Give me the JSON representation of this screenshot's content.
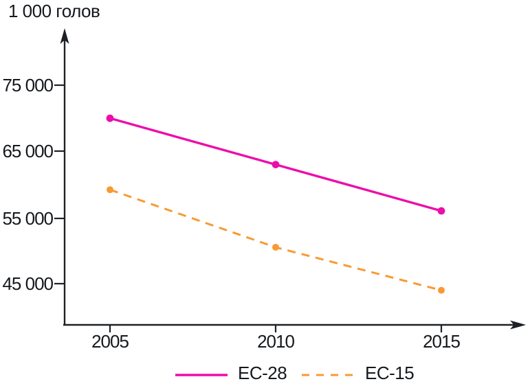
{
  "chart_data": {
    "type": "line",
    "title": "",
    "ylabel": "1 000 голов",
    "xlabel": "",
    "x": [
      2005,
      2010,
      2015
    ],
    "x_tick_labels": [
      "2005",
      "2010",
      "2015"
    ],
    "y_tick_labels": [
      "75 000",
      "65 000",
      "55 000",
      "45 000"
    ],
    "y_tick_values": [
      75000,
      65000,
      55000,
      45000
    ],
    "ylim_drawn": [
      38500,
      83000
    ],
    "grid": false,
    "legend_position": "bottom",
    "series": [
      {
        "name": "ЕС-28",
        "values": [
          70000,
          63000,
          56000
        ],
        "color": "#ee0caa",
        "style": "solid"
      },
      {
        "name": "ЕС-15",
        "values": [
          59200,
          50500,
          44000
        ],
        "color": "#f89a33",
        "style": "dashed"
      }
    ]
  },
  "colors": {
    "axis": "#1d2125",
    "text": "#15181c",
    "ec28": "#ee0caa",
    "ec15": "#f89a33"
  }
}
